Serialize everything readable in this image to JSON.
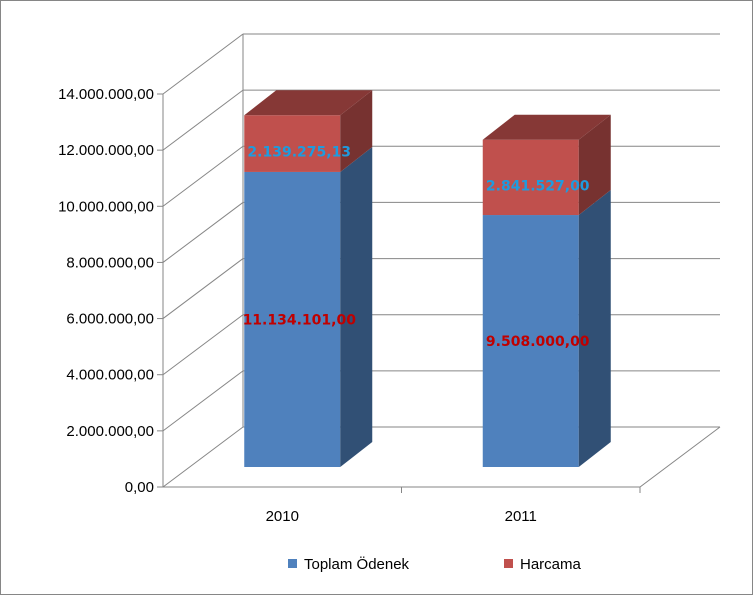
{
  "chart_data": {
    "type": "bar",
    "stacked": true,
    "three_d": true,
    "categories": [
      "2010",
      "2011"
    ],
    "series": [
      {
        "name": "Toplam Ödenek",
        "values": [
          11134101.0,
          9508000.0
        ],
        "labels": [
          "11.134.101,00",
          "9.508.000,00"
        ],
        "color": "#4F81BD",
        "label_color": "#C00000"
      },
      {
        "name": "Harcama",
        "values": [
          2139275.13,
          2841527.0
        ],
        "labels": [
          "2.139.275,13",
          "2.841.527,00"
        ],
        "color": "#C0504D",
        "label_color": "#1F9BDE"
      }
    ],
    "ylim": [
      0,
      14000000
    ],
    "ytick_step": 2000000,
    "ytick_labels": [
      "0,00",
      "2.000.000,00",
      "4.000.000,00",
      "6.000.000,00",
      "8.000.000,00",
      "10.000.000,00",
      "12.000.000,00",
      "14.000.000,00"
    ],
    "grid": true,
    "legend_position": "bottom"
  }
}
